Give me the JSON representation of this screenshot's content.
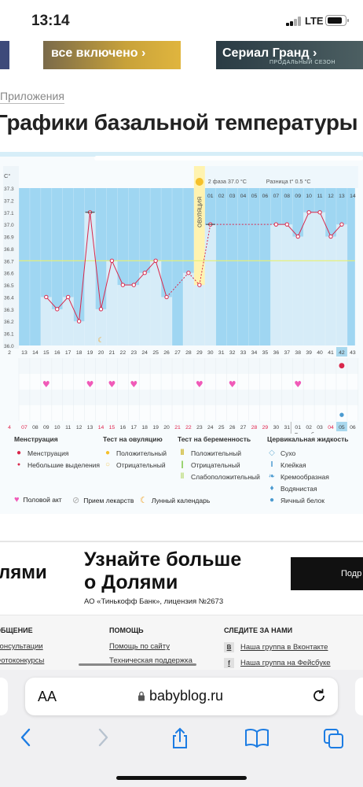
{
  "status_bar": {
    "time": "13:14",
    "network": "LTE"
  },
  "banners": [
    {
      "text": "все включено ›"
    },
    {
      "text": "Сериал Гранд ›",
      "subtext": "ПРОДАЛЬНЫЙ СЕЗОН"
    }
  ],
  "breadcrumb": "Приложения",
  "page_title": "Графики базальной температуры",
  "chart_data": {
    "type": "line",
    "y_unit": "C°",
    "y_ticks": [
      "37.3",
      "37.2",
      "37.1",
      "37.0",
      "36.9",
      "36.8",
      "36.7",
      "36.6",
      "36.5",
      "36.4",
      "36.3",
      "36.2",
      "36.1",
      "36.0"
    ],
    "ylim": [
      36.0,
      37.3
    ],
    "cycle_days": [
      "13",
      "14",
      "15",
      "16",
      "17",
      "18",
      "19",
      "20",
      "21",
      "22",
      "23",
      "24",
      "25",
      "26",
      "27",
      "28",
      "29",
      "30",
      "31",
      "32",
      "33",
      "34",
      "35",
      "36",
      "37",
      "38",
      "39",
      "40",
      "41",
      "42",
      "43"
    ],
    "dates": [
      "07",
      "08",
      "09",
      "10",
      "11",
      "12",
      "13",
      "14",
      "15",
      "16",
      "17",
      "18",
      "19",
      "20",
      "21",
      "22",
      "23",
      "24",
      "25",
      "26",
      "27",
      "28",
      "29",
      "30",
      "31",
      "01",
      "02",
      "03",
      "04",
      "05",
      "06"
    ],
    "weekend_dates": [
      "07",
      "14",
      "15",
      "21",
      "22",
      "28",
      "29",
      "04"
    ],
    "temps": [
      null,
      null,
      36.4,
      36.3,
      36.4,
      36.2,
      37.1,
      36.3,
      36.7,
      36.5,
      36.5,
      36.6,
      36.7,
      36.4,
      null,
      36.6,
      36.5,
      37.0,
      null,
      null,
      null,
      null,
      null,
      37.0,
      37.0,
      36.9,
      37.1,
      37.1,
      36.9,
      37.0,
      null
    ],
    "coverline": 36.7,
    "ovulation_label": "ОВУЛЯЦИЯ",
    "phase_label": "2 фаза",
    "phase_temp": "37.0 °С",
    "diff_label": "Разница t°",
    "diff_value": "0.5 °С",
    "phase_days": [
      "01",
      "02",
      "03",
      "04",
      "05",
      "06",
      "07",
      "08",
      "09",
      "10",
      "11",
      "12",
      "13",
      "14"
    ],
    "month_label": "Сентябрь",
    "highlight_cycle_day": "42",
    "highlight_date": "05",
    "intercourse_days": [
      "15",
      "19",
      "21",
      "23",
      "29",
      "32",
      "38"
    ],
    "menstruation_day": "42",
    "fluid_day": "42",
    "moon_day": "20"
  },
  "legend": {
    "menstruation": {
      "title": "Менструация",
      "items": [
        "Менструация",
        "Небольшие выделения"
      ]
    },
    "ovulation_test": {
      "title": "Тест на овуляцию",
      "items": [
        "Положительный",
        "Отрицательный"
      ]
    },
    "pregnancy_test": {
      "title": "Тест на беременность",
      "items": [
        "Положительный",
        "Отрицательный",
        "Слабоположительный"
      ]
    },
    "cervical_fluid": {
      "title": "Цервикальная жидкость",
      "items": [
        "Сухо",
        "Клейкая",
        "Кремообразная",
        "Водянистая",
        "Яичный белок"
      ]
    },
    "bottom": [
      "Половой акт",
      "Прием лекарств",
      "Лунный календарь"
    ]
  },
  "ad": {
    "left_text": "лями",
    "title_line1": "Узнайте больше",
    "title_line2": "о Долями",
    "subtitle": "АО «Тинькофф Банк», лицензия №2673",
    "button": "Подр"
  },
  "footer": {
    "col1": {
      "title": "ОБЩЕНИЕ",
      "links": [
        "Консультации",
        "Фотоконкурсы"
      ]
    },
    "col2": {
      "title": "ПОМОЩЬ",
      "links": [
        "Помощь по сайту",
        "Техническая поддержка"
      ]
    },
    "col3": {
      "title": "СЛЕДИТЕ ЗА НАМИ",
      "links": [
        "Наша группа в Вконтакте",
        "Наша группа на Фейсбуке"
      ],
      "icons": [
        "В",
        "f"
      ]
    }
  },
  "browser": {
    "aa": "AA",
    "url": "babyblog.ru"
  },
  "colors": {
    "temp_line": "#d9274b",
    "bar_fill": "#d6ecf8",
    "grid_bg": "#9fd6f2",
    "ovulation": "#fff3b0",
    "heart": "#f05ab8",
    "accent": "#1c7ce3"
  }
}
